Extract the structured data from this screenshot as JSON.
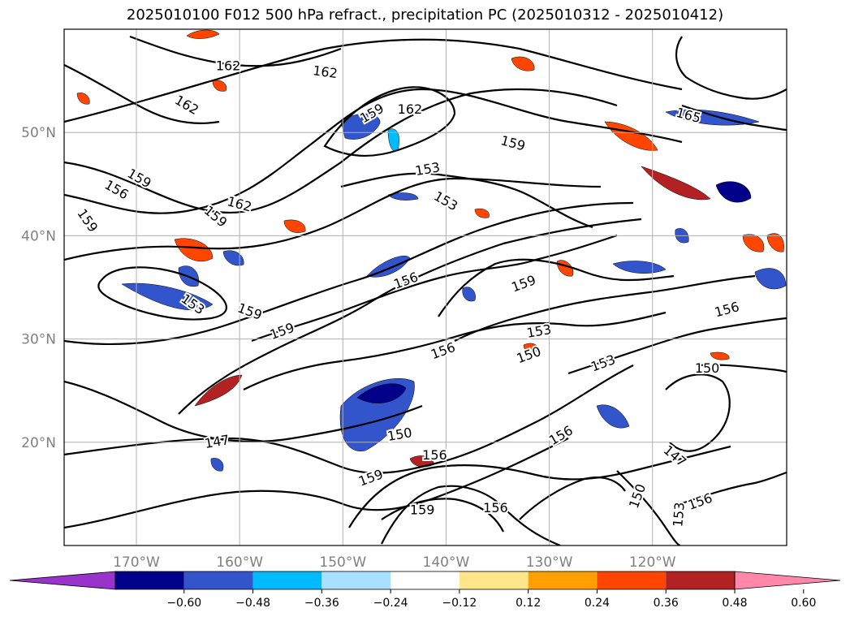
{
  "title": "2025010100 F012 500 hPa refract., precipitation PC (2025010312 - 2025010412)",
  "chart_data": {
    "type": "contour",
    "variable": "500 hPa refract.",
    "shading_variable": "precipitation PC",
    "lat_ticks": [
      {
        "value": 20,
        "label": "20°N"
      },
      {
        "value": 30,
        "label": "30°N"
      },
      {
        "value": 40,
        "label": "40°N"
      },
      {
        "value": 50,
        "label": "50°N"
      }
    ],
    "lon_ticks": [
      {
        "value": -170,
        "label": "170°W"
      },
      {
        "value": -160,
        "label": "160°W"
      },
      {
        "value": -150,
        "label": "150°W"
      },
      {
        "value": -140,
        "label": "140°W"
      },
      {
        "value": -130,
        "label": "130°W"
      },
      {
        "value": -120,
        "label": "120°W"
      }
    ],
    "lon_range": [
      -177,
      -107
    ],
    "lat_range": [
      10,
      60
    ],
    "grid": true,
    "contour_labels": [
      {
        "text": "162",
        "lon": -161.1,
        "lat": 56.5,
        "rot": 0
      },
      {
        "text": "162",
        "lon": -151.7,
        "lat": 55.9,
        "rot": 8
      },
      {
        "text": "162",
        "lon": -143.5,
        "lat": 52.3,
        "rot": 0
      },
      {
        "text": "162",
        "lon": -165.1,
        "lat": 52.7,
        "rot": 30
      },
      {
        "text": "162",
        "lon": -160.0,
        "lat": 43.1,
        "rot": 15
      },
      {
        "text": "165",
        "lon": -116.5,
        "lat": 51.7,
        "rot": 15
      },
      {
        "text": "159",
        "lon": -147.2,
        "lat": 51.9,
        "rot": -30
      },
      {
        "text": "159",
        "lon": -133.5,
        "lat": 49.0,
        "rot": 15
      },
      {
        "text": "159",
        "lon": -169.7,
        "lat": 45.6,
        "rot": 30
      },
      {
        "text": "159",
        "lon": -174.7,
        "lat": 41.5,
        "rot": 55
      },
      {
        "text": "159",
        "lon": -162.3,
        "lat": 41.9,
        "rot": 40
      },
      {
        "text": "159",
        "lon": -159.0,
        "lat": 32.7,
        "rot": 20
      },
      {
        "text": "159",
        "lon": -155.9,
        "lat": 30.8,
        "rot": -20
      },
      {
        "text": "159",
        "lon": -132.5,
        "lat": 35.4,
        "rot": -20
      },
      {
        "text": "159",
        "lon": -147.3,
        "lat": 16.6,
        "rot": -20
      },
      {
        "text": "159",
        "lon": -142.3,
        "lat": 13.5,
        "rot": 0
      },
      {
        "text": "156",
        "lon": -171.9,
        "lat": 44.5,
        "rot": 30
      },
      {
        "text": "156",
        "lon": -143.9,
        "lat": 35.7,
        "rot": -20
      },
      {
        "text": "156",
        "lon": -140.3,
        "lat": 28.9,
        "rot": -20
      },
      {
        "text": "156",
        "lon": -112.8,
        "lat": 32.9,
        "rot": -15
      },
      {
        "text": "156",
        "lon": -128.9,
        "lat": 20.7,
        "rot": -30
      },
      {
        "text": "156",
        "lon": -141.1,
        "lat": 18.8,
        "rot": 0
      },
      {
        "text": "156",
        "lon": -135.2,
        "lat": 13.7,
        "rot": 0
      },
      {
        "text": "156",
        "lon": -115.4,
        "lat": 14.3,
        "rot": -20
      },
      {
        "text": "153",
        "lon": -141.8,
        "lat": 46.5,
        "rot": -10
      },
      {
        "text": "153",
        "lon": -140.0,
        "lat": 43.4,
        "rot": 30
      },
      {
        "text": "153",
        "lon": -164.5,
        "lat": 33.4,
        "rot": 35
      },
      {
        "text": "153",
        "lon": -131.0,
        "lat": 30.8,
        "rot": -10
      },
      {
        "text": "153",
        "lon": -124.8,
        "lat": 27.7,
        "rot": -20
      },
      {
        "text": "153",
        "lon": -117.5,
        "lat": 13.0,
        "rot": -85
      },
      {
        "text": "150",
        "lon": -132.0,
        "lat": 28.5,
        "rot": -20
      },
      {
        "text": "150",
        "lon": -114.7,
        "lat": 27.2,
        "rot": 0
      },
      {
        "text": "150",
        "lon": -144.5,
        "lat": 20.8,
        "rot": -10
      },
      {
        "text": "150",
        "lon": -121.5,
        "lat": 14.8,
        "rot": -70
      },
      {
        "text": "147",
        "lon": -162.2,
        "lat": 20.1,
        "rot": -10
      },
      {
        "text": "147",
        "lon": -117.8,
        "lat": 18.7,
        "rot": 40
      }
    ],
    "colorbar": {
      "ticks": [
        "−0.60",
        "−0.48",
        "−0.36",
        "−0.24",
        "−0.12",
        "0.12",
        "0.24",
        "0.36",
        "0.48",
        "0.60"
      ],
      "levels": [
        -0.6,
        -0.48,
        -0.36,
        -0.24,
        -0.12,
        0.12,
        0.24,
        0.36,
        0.48,
        0.6
      ],
      "colors": [
        "#9933cc",
        "#000088",
        "#3355cc",
        "#00bbff",
        "#aae0ff",
        "#ffffff",
        "#ffe68a",
        "#ffa000",
        "#ff4500",
        "#b22222",
        "#ff88aa"
      ],
      "extend": "both"
    }
  }
}
